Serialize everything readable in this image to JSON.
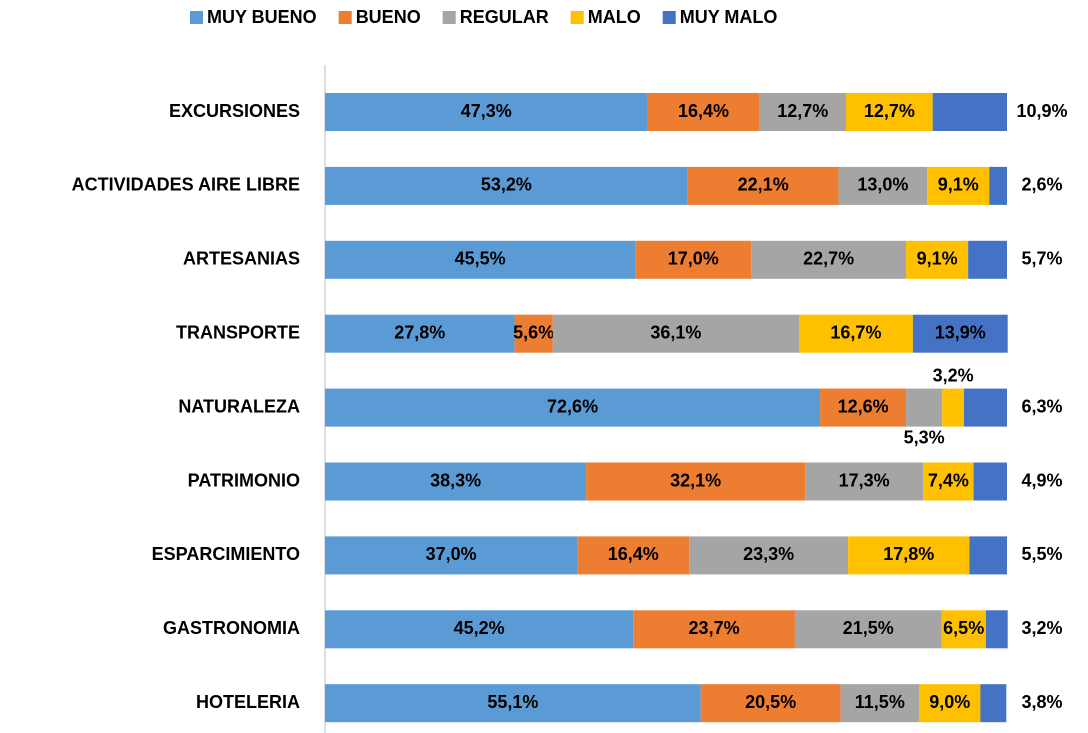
{
  "chart_data": {
    "type": "stacked_barh",
    "categories": [
      "EXCURSIONES",
      "ACTIVIDADES AIRE LIBRE",
      "ARTESANIAS",
      "TRANSPORTE",
      "NATURALEZA",
      "PATRIMONIO",
      "ESPARCIMIENTO",
      "GASTRONOMIA",
      "HOTELERIA"
    ],
    "xlim": [
      0,
      100
    ],
    "legend": "top",
    "grid": false,
    "series": [
      {
        "name": "MUY BUENO",
        "color": "#5b9bd5",
        "values": [
          47.3,
          53.2,
          45.5,
          27.8,
          72.6,
          38.3,
          37.0,
          45.2,
          55.1
        ],
        "value_labels": [
          "47,3%",
          "53,2%",
          "45,5%",
          "27,8%",
          "72,6%",
          "38,3%",
          "37,0%",
          "45,2%",
          "55,1%"
        ]
      },
      {
        "name": "BUENO",
        "color": "#ed7d31",
        "values": [
          16.4,
          22.1,
          17.0,
          5.6,
          12.6,
          32.1,
          16.4,
          23.7,
          20.5
        ],
        "value_labels": [
          "16,4%",
          "22,1%",
          "17,0%",
          "5,6%",
          "12,6%",
          "32,1%",
          "16,4%",
          "23,7%",
          "20,5%"
        ]
      },
      {
        "name": "REGULAR",
        "color": "#a5a5a5",
        "values": [
          12.7,
          13.0,
          22.7,
          36.1,
          5.3,
          17.3,
          23.3,
          21.5,
          11.5
        ],
        "value_labels": [
          "12,7%",
          "13,0%",
          "22,7%",
          "36,1%",
          "5,3%",
          "17,3%",
          "23,3%",
          "21,5%",
          "11,5%"
        ]
      },
      {
        "name": "MALO",
        "color": "#ffc000",
        "values": [
          12.7,
          9.1,
          9.1,
          16.7,
          3.2,
          7.4,
          17.8,
          6.5,
          9.0
        ],
        "value_labels": [
          "12,7%",
          "9,1%",
          "9,1%",
          "16,7%",
          "3,2%",
          "7,4%",
          "17,8%",
          "6,5%",
          "9,0%"
        ]
      },
      {
        "name": "MUY MALO",
        "color": "#4472c4",
        "values": [
          10.9,
          2.6,
          5.7,
          13.9,
          6.3,
          4.9,
          5.5,
          3.2,
          3.8
        ],
        "value_labels": [
          "10,9%",
          "2,6%",
          "5,7%",
          "13,9%",
          "6,3%",
          "4,9%",
          "5,5%",
          "3,2%",
          "3,8%"
        ]
      }
    ]
  }
}
